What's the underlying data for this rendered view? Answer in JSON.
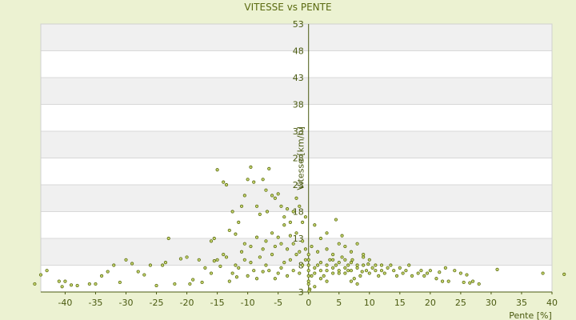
{
  "chart_data": {
    "type": "scatter",
    "title": "VITESSE vs PENTE",
    "xlabel": "Pente [%]",
    "ylabel": "Vitesse [km/h]",
    "xlim": [
      -44,
      40
    ],
    "ylim": [
      3,
      53
    ],
    "x_ticks": [
      -40,
      -35,
      -30,
      -25,
      -20,
      -15,
      -10,
      -5,
      0,
      5,
      10,
      15,
      20,
      25,
      30,
      35,
      40
    ],
    "y_ticks": [
      3,
      8,
      13,
      18,
      23,
      28,
      33,
      38,
      43,
      48,
      53
    ],
    "grid": true,
    "colors": {
      "background": "#ecf2d2",
      "plot_band_light": "#ffffff",
      "plot_band_dark": "#f0f0f0",
      "axis": "#4a5a10",
      "point_fill": "#c8d870",
      "point_stroke": "#5a6a10"
    },
    "points": [
      [
        -44,
        6.2
      ],
      [
        -45,
        4.5
      ],
      [
        -43,
        7
      ],
      [
        -41,
        5
      ],
      [
        -40.5,
        4
      ],
      [
        -40,
        5
      ],
      [
        -39,
        4.3
      ],
      [
        -38,
        4.2
      ],
      [
        -36,
        4.5
      ],
      [
        -35,
        4.5
      ],
      [
        -34,
        6
      ],
      [
        -33,
        6.8
      ],
      [
        -32,
        8
      ],
      [
        -31,
        4.8
      ],
      [
        -30,
        9
      ],
      [
        -29,
        8.3
      ],
      [
        -28,
        6.8
      ],
      [
        -27,
        6.2
      ],
      [
        -26,
        8
      ],
      [
        -25,
        4.2
      ],
      [
        -24,
        8
      ],
      [
        -23.5,
        8.5
      ],
      [
        -23,
        13
      ],
      [
        -22,
        4.5
      ],
      [
        -21,
        9.2
      ],
      [
        -20,
        9.5
      ],
      [
        -19.5,
        4.5
      ],
      [
        -19,
        5.3
      ],
      [
        -18,
        9
      ],
      [
        -17.5,
        4.8
      ],
      [
        -17,
        7.5
      ],
      [
        -16,
        6.5
      ],
      [
        -15.5,
        8.8
      ],
      [
        -15,
        9
      ],
      [
        -14.5,
        7.8
      ],
      [
        -14,
        10
      ],
      [
        -13.5,
        9.5
      ],
      [
        -13,
        5
      ],
      [
        -12.5,
        6.5
      ],
      [
        -12,
        8
      ],
      [
        -11.8,
        5.8
      ],
      [
        -11.5,
        7.5
      ],
      [
        -11,
        10.5
      ],
      [
        -10.5,
        9
      ],
      [
        -10,
        6
      ],
      [
        -9.5,
        8.5
      ],
      [
        -9,
        7
      ],
      [
        -8.5,
        5.5
      ],
      [
        -8,
        9.5
      ],
      [
        -7.5,
        6.8
      ],
      [
        -7,
        8
      ],
      [
        -6.5,
        7
      ],
      [
        -6,
        10
      ],
      [
        -5.5,
        5.5
      ],
      [
        -5,
        6.5
      ],
      [
        -4.5,
        7.5
      ],
      [
        -4,
        8.5
      ],
      [
        -3.5,
        6
      ],
      [
        -3,
        9
      ],
      [
        -2.5,
        7
      ],
      [
        -2,
        10
      ],
      [
        -1.5,
        6.5
      ],
      [
        -1,
        8
      ],
      [
        -0.5,
        9
      ],
      [
        -16,
        12.5
      ],
      [
        -15.5,
        13
      ],
      [
        -13,
        14.5
      ],
      [
        -12,
        13.8
      ],
      [
        -10.5,
        12
      ],
      [
        -9.5,
        11.5
      ],
      [
        -8.5,
        13.2
      ],
      [
        -7.5,
        11
      ],
      [
        -7,
        12.5
      ],
      [
        -6,
        14
      ],
      [
        -5.5,
        11.5
      ],
      [
        -5,
        13.2
      ],
      [
        -4.5,
        12
      ],
      [
        -4,
        15.5
      ],
      [
        -3.5,
        11
      ],
      [
        -3,
        13.5
      ],
      [
        -2.5,
        12
      ],
      [
        -2,
        14
      ],
      [
        -1.5,
        10.5
      ],
      [
        -1,
        12.5
      ],
      [
        -0.5,
        11
      ],
      [
        -15,
        25.8
      ],
      [
        -14,
        23.5
      ],
      [
        -13.5,
        23
      ],
      [
        -12.5,
        18
      ],
      [
        -11.5,
        16
      ],
      [
        -11,
        19
      ],
      [
        -10.5,
        21
      ],
      [
        -10,
        24
      ],
      [
        -9.5,
        26.3
      ],
      [
        -9,
        23.5
      ],
      [
        -8.5,
        19
      ],
      [
        -8,
        17.5
      ],
      [
        -7.5,
        24
      ],
      [
        -7,
        22
      ],
      [
        -6.8,
        18
      ],
      [
        -6.5,
        26
      ],
      [
        -6,
        21
      ],
      [
        -5.5,
        20.5
      ],
      [
        -5,
        21.3
      ],
      [
        -4.5,
        19
      ],
      [
        -4,
        17
      ],
      [
        -3.5,
        18.5
      ],
      [
        -3,
        16
      ],
      [
        -2.5,
        18
      ],
      [
        -2,
        20.5
      ],
      [
        -1.5,
        19
      ],
      [
        -1,
        16
      ],
      [
        -0.5,
        17
      ],
      [
        0,
        4.5
      ],
      [
        0.5,
        6
      ],
      [
        1,
        7.5
      ],
      [
        1.5,
        8
      ],
      [
        2,
        8.5
      ],
      [
        2.5,
        6
      ],
      [
        3,
        7
      ],
      [
        3.5,
        9
      ],
      [
        4,
        6.5
      ],
      [
        4.5,
        8
      ],
      [
        5,
        7
      ],
      [
        5.5,
        9.5
      ],
      [
        6,
        6.5
      ],
      [
        6.5,
        8
      ],
      [
        7,
        7
      ],
      [
        7.5,
        5.5
      ],
      [
        8,
        7.5
      ],
      [
        8.5,
        6
      ],
      [
        9,
        8
      ],
      [
        9.5,
        7
      ],
      [
        10,
        6.5
      ],
      [
        10.5,
        7.5
      ],
      [
        11,
        8
      ],
      [
        11.5,
        6
      ],
      [
        12,
        7
      ],
      [
        12.5,
        6.5
      ],
      [
        13,
        7.5
      ],
      [
        14,
        7
      ],
      [
        14.5,
        6
      ],
      [
        15,
        7.5
      ],
      [
        15.5,
        6.5
      ],
      [
        16,
        7
      ],
      [
        17,
        6
      ],
      [
        18,
        6.5
      ],
      [
        19,
        6
      ],
      [
        20,
        7
      ],
      [
        21,
        5.5
      ],
      [
        22,
        5
      ],
      [
        22.5,
        7.5
      ],
      [
        23,
        5
      ],
      [
        25,
        6.5
      ],
      [
        25.5,
        4.8
      ],
      [
        26,
        6.2
      ],
      [
        26.5,
        4.7
      ],
      [
        27,
        5
      ],
      [
        28,
        4.5
      ],
      [
        31,
        7.2
      ],
      [
        38.5,
        6.5
      ],
      [
        42,
        6.3
      ],
      [
        0,
        5
      ],
      [
        0,
        6
      ],
      [
        0,
        7
      ],
      [
        0,
        8
      ],
      [
        0,
        9
      ],
      [
        0,
        10
      ],
      [
        1,
        6.5
      ],
      [
        2,
        7
      ],
      [
        3,
        8
      ],
      [
        4,
        7.5
      ],
      [
        5,
        8.5
      ],
      [
        6,
        9
      ],
      [
        7,
        8.5
      ],
      [
        8,
        8
      ],
      [
        9,
        9.5
      ],
      [
        10,
        9
      ],
      [
        11,
        7
      ],
      [
        12,
        8
      ],
      [
        2,
        13
      ],
      [
        3,
        11
      ],
      [
        4,
        10
      ],
      [
        5,
        12
      ],
      [
        6,
        11.5
      ],
      [
        7,
        10.5
      ],
      [
        8,
        12
      ],
      [
        9,
        10
      ],
      [
        1,
        15.5
      ],
      [
        4.5,
        16.5
      ],
      [
        3,
        14
      ],
      [
        5.5,
        13.5
      ],
      [
        0.5,
        11.5
      ],
      [
        1.5,
        10.5
      ],
      [
        6.5,
        7
      ],
      [
        7.2,
        9
      ],
      [
        8.8,
        6.8
      ],
      [
        9.8,
        8.2
      ],
      [
        13.5,
        8
      ],
      [
        16.5,
        8
      ],
      [
        18.5,
        7
      ],
      [
        19.5,
        6.5
      ],
      [
        21.5,
        6.7
      ],
      [
        24,
        7
      ],
      [
        4,
        9
      ],
      [
        5,
        6.5
      ],
      [
        6,
        7.5
      ],
      [
        3,
        5
      ],
      [
        2,
        5.5
      ],
      [
        7,
        5
      ],
      [
        8,
        4.5
      ],
      [
        1,
        4
      ],
      [
        0.2,
        3.5
      ],
      [
        0.1,
        3.2
      ]
    ]
  }
}
